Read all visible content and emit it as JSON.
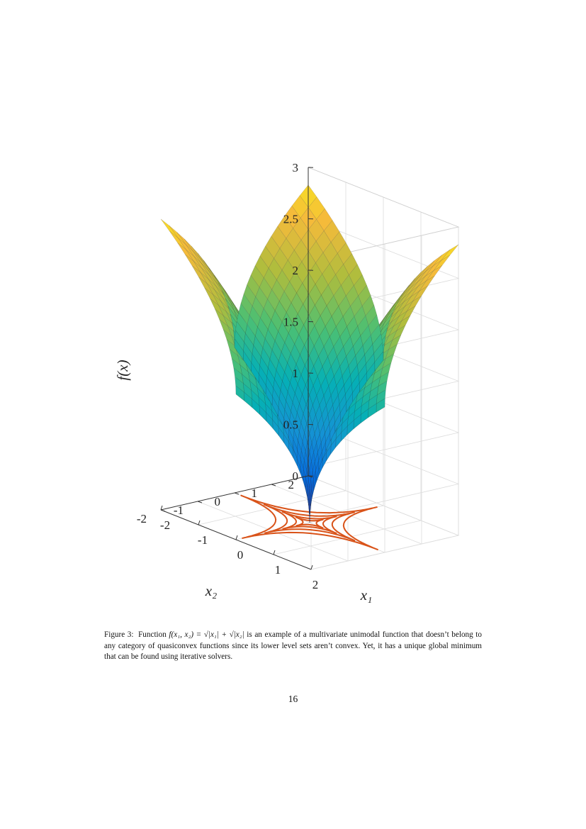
{
  "page": {
    "number": "16"
  },
  "caption": {
    "label": "Figure 3:",
    "text_1": "Function",
    "formula": "f(x₁, x₂) = √|x₁| + √|x₂|",
    "text_2": "is an example of a multivariate unimodal function that doesn’t belong to any category of quasiconvex functions since its lower level sets aren’t convex. Yet, it has a unique global minimum that can be found using iterative solvers."
  },
  "chart_data": {
    "type": "surface",
    "function": "sqrt(|x1|) + sqrt(|x2|)",
    "x1_range": [
      -2,
      2
    ],
    "x2_range": [
      -2,
      2
    ],
    "zlim": [
      0,
      3
    ],
    "x1_ticks": [
      "-2",
      "-1",
      "0",
      "1",
      "2"
    ],
    "x2_ticks": [
      "-2",
      "-1",
      "0",
      "1",
      "2"
    ],
    "z_ticks": [
      "0",
      "0.5",
      "1",
      "1.5",
      "2",
      "2.5",
      "3"
    ],
    "xlabel": "x₁",
    "ylabel": "x₂",
    "zlabel": "f(x)",
    "grid": true,
    "colormap": "parula",
    "contour_color": "#d95319",
    "contour_levels": [
      0.6,
      0.85,
      1.1,
      1.35
    ]
  }
}
